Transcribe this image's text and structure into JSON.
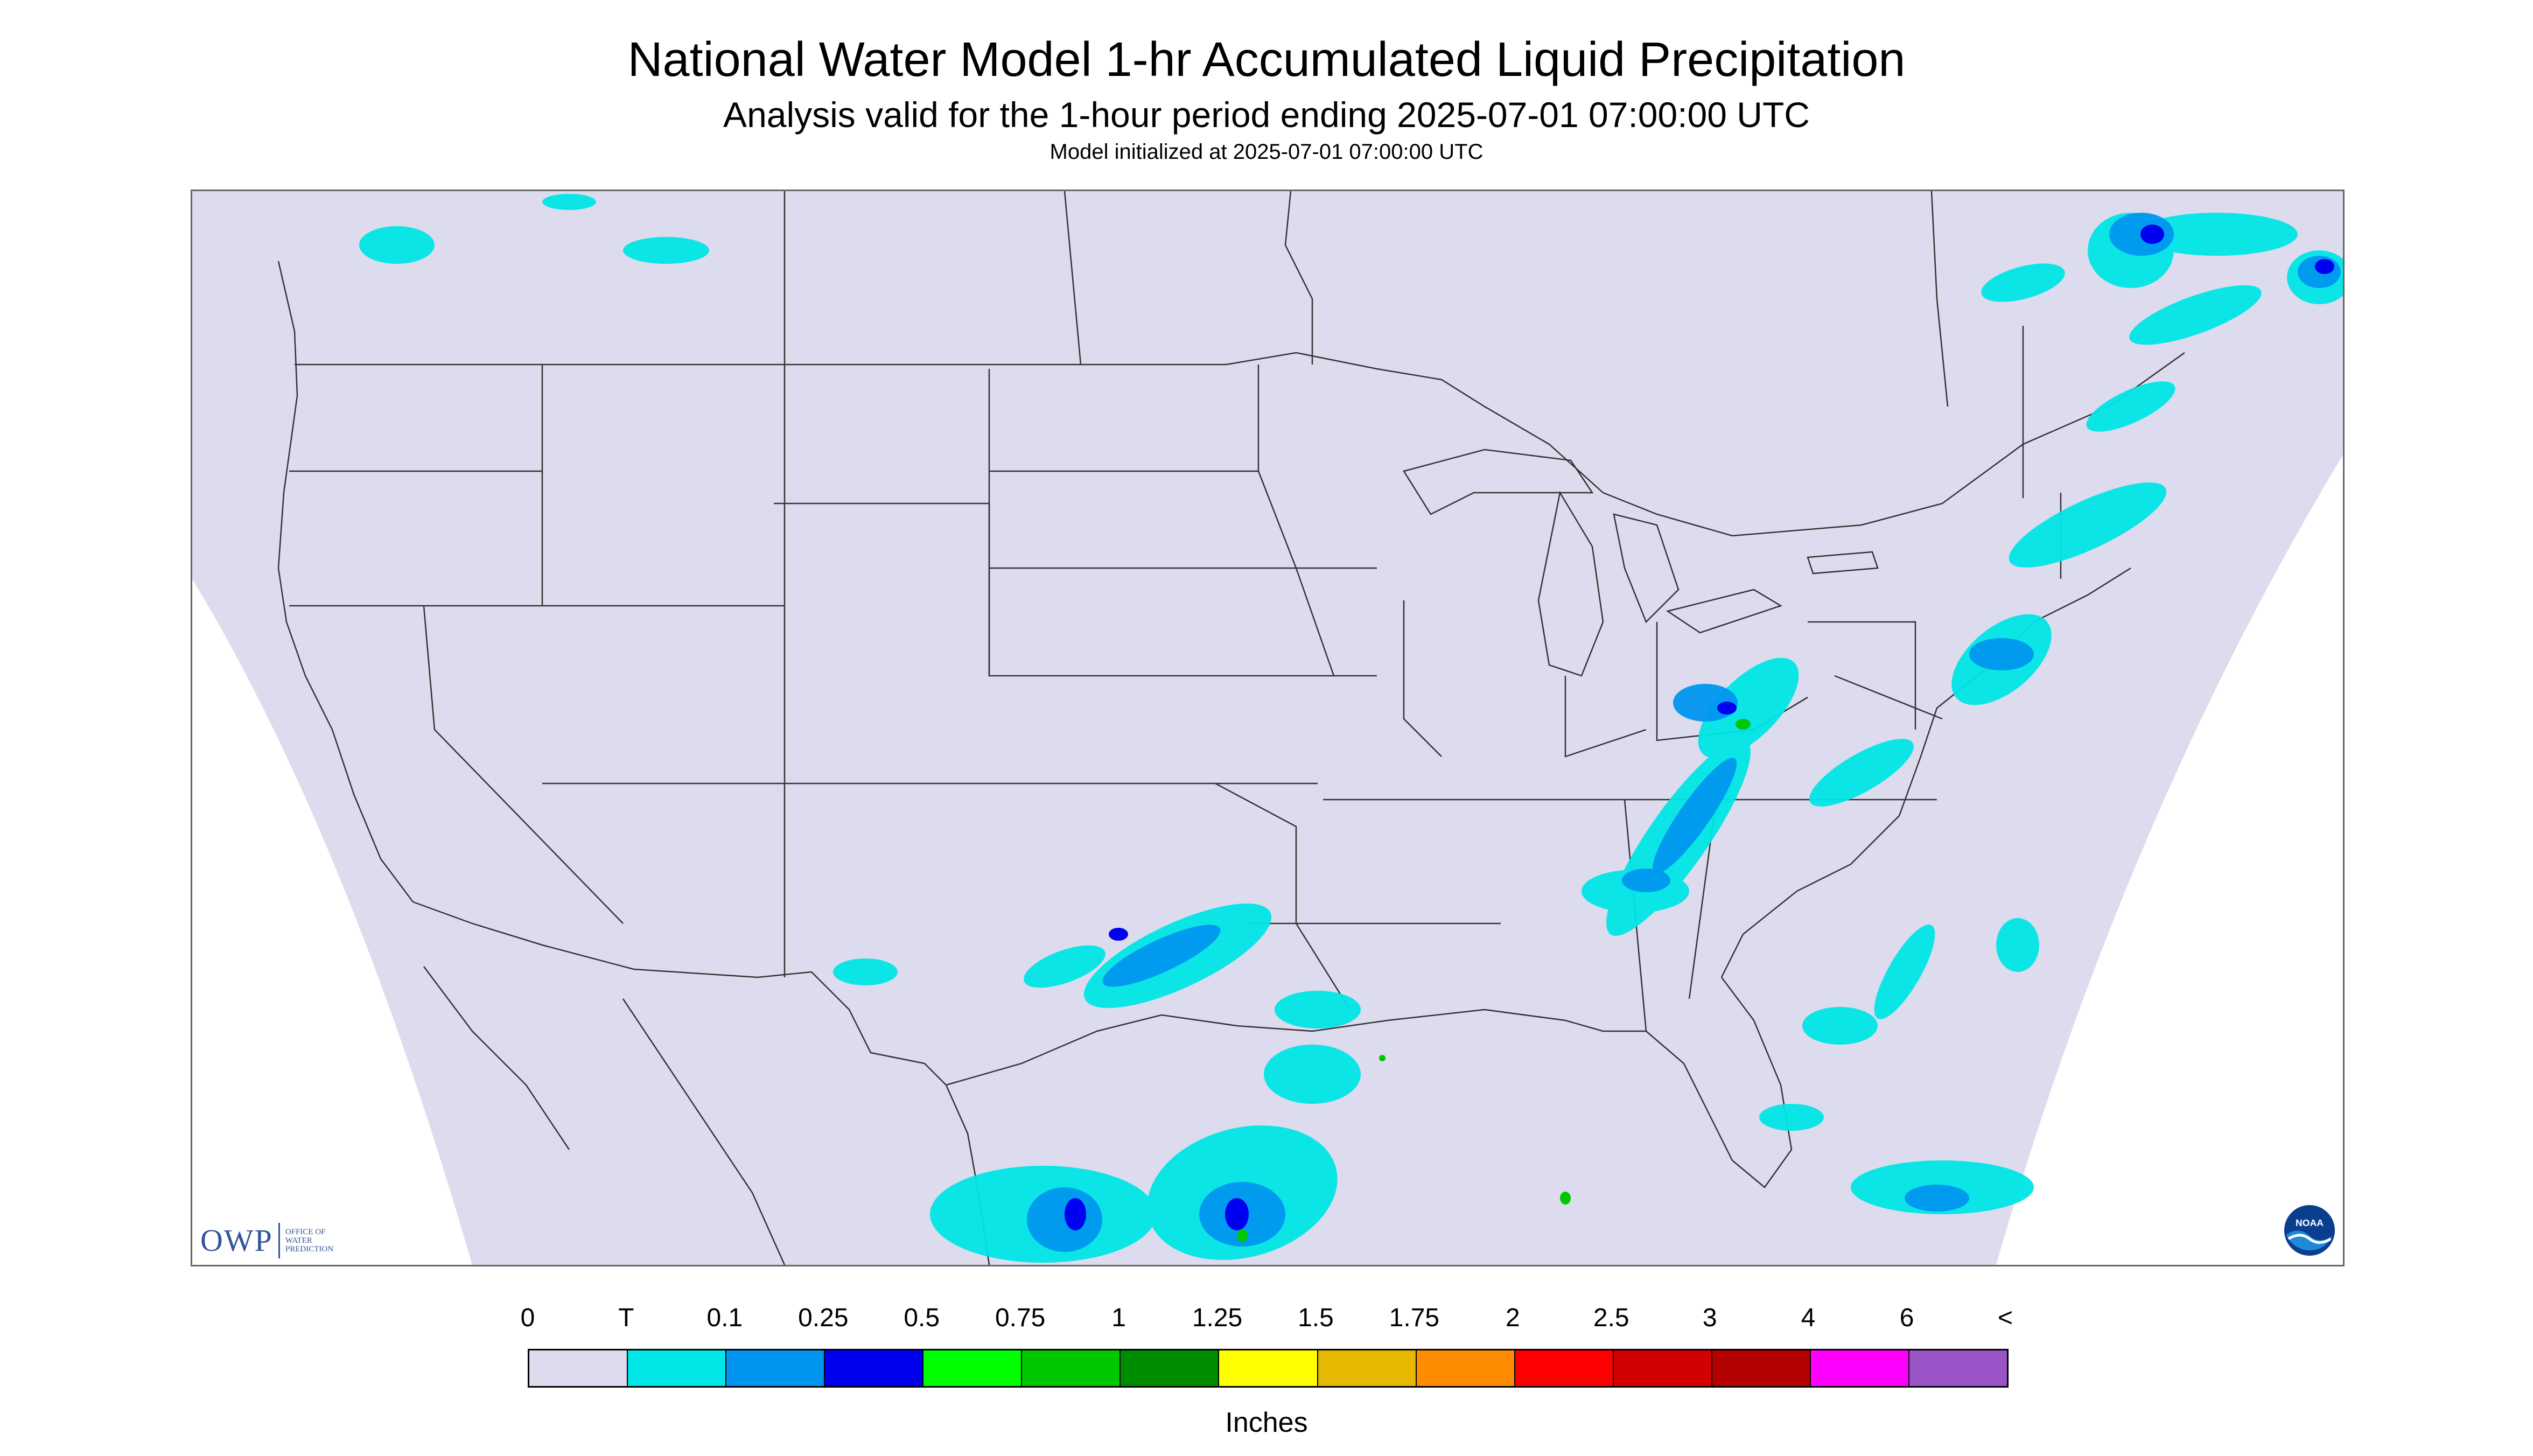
{
  "header": {
    "title": "National Water Model 1-hr Accumulated Liquid Precipitation",
    "subtitle": "Analysis valid for the 1-hour period ending 2025-07-01 07:00:00 UTC",
    "init_line": "Model initialized at 2025-07-01 07:00:00 UTC"
  },
  "logos": {
    "owp_text": "OWP",
    "owp_subtext": [
      "OFFICE OF",
      "WATER",
      "PREDICTION"
    ],
    "noaa_text": "NOAA"
  },
  "legend": {
    "units": "Inches",
    "labels": [
      "0",
      "T",
      "0.1",
      "0.25",
      "0.5",
      "0.75",
      "1",
      "1.25",
      "1.5",
      "1.75",
      "2",
      "2.5",
      "3",
      "4",
      "6",
      "<"
    ],
    "colors": [
      "#dcdcee",
      "#00e5e5",
      "#0096f0",
      "#0000f0",
      "#00ff00",
      "#00c800",
      "#008c00",
      "#ffff00",
      "#e6b800",
      "#ff8c00",
      "#ff0000",
      "#d20000",
      "#b40000",
      "#ff00ff",
      "#9955c8"
    ]
  },
  "map": {
    "domain_fill": "#dcdcee",
    "outside_fill": "#ffffff",
    "boundary_color": "#333333",
    "precip_colors": {
      "trace": "#00e5e5",
      "light": "#0096f0",
      "moderate": "#0000f0",
      "heavy": "#00c800"
    }
  }
}
